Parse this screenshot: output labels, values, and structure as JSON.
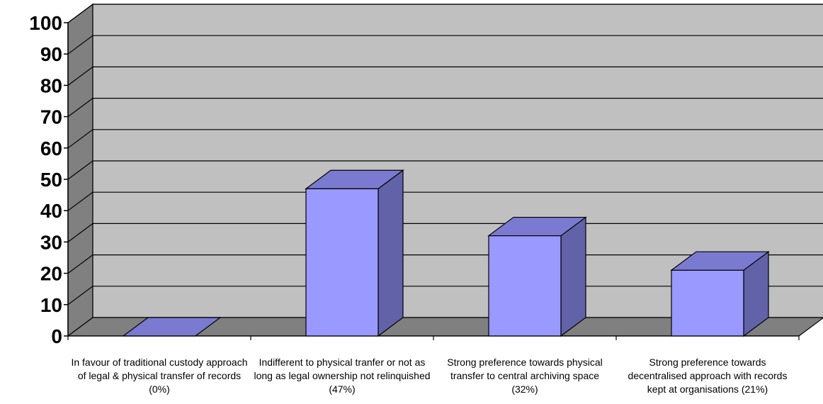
{
  "chart_data": {
    "type": "bar",
    "style": "3d-column",
    "categories": [
      "In favour of traditional custody approach of legal & physical transfer of records (0%)",
      "Indifferent to physical tranfer or not as long as legal ownership not relinquished (47%)",
      "Strong preference towards physical transfer to central archiving space (32%)",
      "Strong preference towards decentralised approach with records kept at organisations (21%)"
    ],
    "values": [
      0,
      47,
      32,
      21
    ],
    "yticks": [
      "0",
      "10",
      "20",
      "30",
      "40",
      "50",
      "60",
      "70",
      "80",
      "90",
      "100"
    ],
    "ylim": [
      0,
      100
    ],
    "grid": true,
    "legend": "none",
    "colors": {
      "bar_front": "#9999ff",
      "bar_top": "#7a7ad0",
      "bar_side": "#6262a8",
      "back_wall": "#c0c0c0",
      "side_wall": "#808080",
      "floor": "#808080",
      "grid": "#000000"
    }
  }
}
